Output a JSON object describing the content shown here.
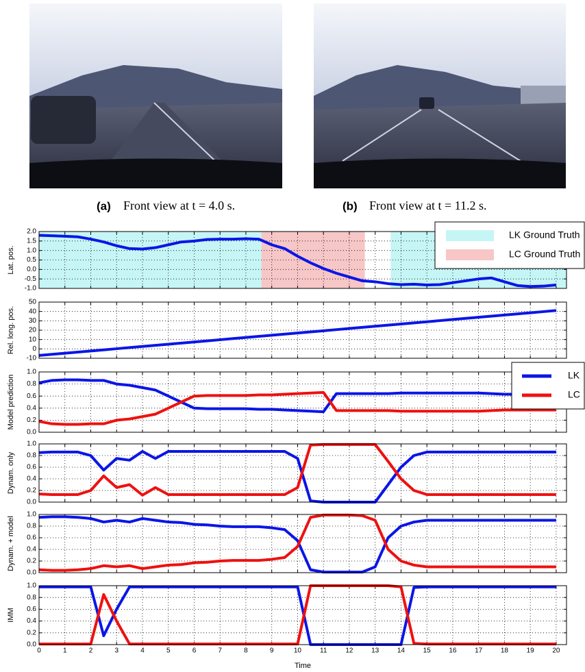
{
  "figure": {
    "captions": [
      {
        "label": "(a)",
        "text": "Front view at t = 4.0 s."
      },
      {
        "label": "(b)",
        "text": "Front view at t = 11.2 s."
      }
    ]
  },
  "chart_data": [
    {
      "type": "line",
      "ylabel": "Lat. pos.",
      "grid": true,
      "legend": "upper right",
      "xlim": [
        0,
        20.4
      ],
      "xticks": [
        0,
        1,
        2,
        3,
        4,
        5,
        6,
        7,
        8,
        9,
        10,
        11,
        12,
        13,
        14,
        15,
        16,
        17,
        18,
        19,
        20
      ],
      "ylim": [
        -1,
        2
      ],
      "yticks": [
        {
          "value": -1,
          "label": "-1.0"
        },
        {
          "value": -0.5,
          "label": "-0.5"
        },
        {
          "value": 0,
          "label": "0.0"
        },
        {
          "value": 0.5,
          "label": "0.5"
        },
        {
          "value": 1,
          "label": "1.0"
        },
        {
          "value": 1.5,
          "label": "1.5"
        },
        {
          "value": 2,
          "label": "2.0"
        }
      ],
      "spans": [
        {
          "name": "LK Ground Truth",
          "color": "#c6f5f5",
          "ranges": [
            [
              0,
              8.6
            ],
            [
              13.6,
              20.4
            ]
          ]
        },
        {
          "name": "LC Ground Truth",
          "color": "#f7c6c6",
          "ranges": [
            [
              8.6,
              12.6
            ]
          ]
        }
      ],
      "x": [
        0,
        0.5,
        1,
        1.5,
        2,
        2.5,
        3,
        3.5,
        4,
        4.5,
        5,
        5.5,
        6,
        6.5,
        7,
        7.5,
        8,
        8.5,
        9,
        9.5,
        10,
        10.5,
        11,
        11.5,
        12,
        12.5,
        13,
        13.5,
        14,
        14.5,
        15,
        15.5,
        16,
        16.5,
        17,
        17.5,
        18,
        18.5,
        19,
        19.5,
        20
      ],
      "series": [
        {
          "color": "#0b16e6",
          "values": [
            1.8,
            1.78,
            1.75,
            1.72,
            1.6,
            1.45,
            1.25,
            1.1,
            1.08,
            1.15,
            1.3,
            1.45,
            1.5,
            1.58,
            1.6,
            1.6,
            1.62,
            1.6,
            1.3,
            1.1,
            0.7,
            0.35,
            0.05,
            -0.2,
            -0.4,
            -0.6,
            -0.65,
            -0.75,
            -0.8,
            -0.78,
            -0.82,
            -0.8,
            -0.7,
            -0.6,
            -0.5,
            -0.45,
            -0.65,
            -0.85,
            -0.9,
            -0.88,
            -0.82
          ]
        }
      ]
    },
    {
      "type": "line",
      "ylabel": "Rel. long. pos.",
      "grid": true,
      "xlim": [
        0,
        20.4
      ],
      "xticks": [
        0,
        1,
        2,
        3,
        4,
        5,
        6,
        7,
        8,
        9,
        10,
        11,
        12,
        13,
        14,
        15,
        16,
        17,
        18,
        19,
        20
      ],
      "ylim": [
        -10,
        50
      ],
      "yticks": [
        -10,
        0,
        10,
        20,
        30,
        40,
        50
      ],
      "x": [
        0,
        0.5,
        1,
        1.5,
        2,
        2.5,
        3,
        3.5,
        4,
        4.5,
        5,
        5.5,
        6,
        6.5,
        7,
        7.5,
        8,
        8.5,
        9,
        9.5,
        10,
        10.5,
        11,
        11.5,
        12,
        12.5,
        13,
        13.5,
        14,
        14.5,
        15,
        15.5,
        16,
        16.5,
        17,
        17.5,
        18,
        18.5,
        19,
        19.5,
        20
      ],
      "series": [
        {
          "color": "#0b16e6",
          "values": [
            -7,
            -5.8,
            -4.6,
            -3.4,
            -2.2,
            -1,
            0.2,
            1.4,
            2.6,
            3.8,
            5,
            6.2,
            7.4,
            8.6,
            9.8,
            11,
            12.2,
            13.4,
            14.6,
            15.8,
            17,
            18.2,
            19.4,
            20.6,
            21.8,
            23,
            24.2,
            25.4,
            26.6,
            27.8,
            29,
            30.2,
            31.4,
            32.6,
            33.8,
            35,
            36.2,
            37.4,
            38.6,
            39.8,
            41
          ]
        }
      ]
    },
    {
      "type": "line",
      "ylabel": "Model prediction",
      "grid": true,
      "legend": "upper right",
      "xlim": [
        0,
        20.4
      ],
      "xticks": [
        0,
        1,
        2,
        3,
        4,
        5,
        6,
        7,
        8,
        9,
        10,
        11,
        12,
        13,
        14,
        15,
        16,
        17,
        18,
        19,
        20
      ],
      "ylim": [
        0,
        1
      ],
      "yticks": [
        {
          "value": 0,
          "label": "0.0"
        },
        {
          "value": 0.2,
          "label": "0.2"
        },
        {
          "value": 0.4,
          "label": "0.4"
        },
        {
          "value": 0.6,
          "label": "0.6"
        },
        {
          "value": 0.8,
          "label": "0.8"
        },
        {
          "value": 1,
          "label": "1.0"
        }
      ],
      "x": [
        0,
        0.5,
        1,
        1.5,
        2,
        2.5,
        3,
        3.5,
        4,
        4.5,
        5,
        5.5,
        6,
        6.5,
        7,
        7.5,
        8,
        8.5,
        9,
        9.5,
        10,
        10.5,
        11,
        11.5,
        12,
        12.5,
        13,
        13.5,
        14,
        14.5,
        15,
        15.5,
        16,
        16.5,
        17,
        17.5,
        18,
        18.5,
        19,
        19.5,
        20
      ],
      "series": [
        {
          "name": "LK",
          "color": "#0b16e6",
          "values": [
            0.82,
            0.86,
            0.87,
            0.87,
            0.86,
            0.86,
            0.8,
            0.78,
            0.74,
            0.7,
            0.6,
            0.5,
            0.4,
            0.39,
            0.39,
            0.39,
            0.39,
            0.38,
            0.38,
            0.37,
            0.36,
            0.35,
            0.34,
            0.64,
            0.64,
            0.64,
            0.64,
            0.64,
            0.65,
            0.65,
            0.65,
            0.65,
            0.65,
            0.65,
            0.65,
            0.64,
            0.63,
            0.63,
            0.63,
            0.63,
            0.63
          ]
        },
        {
          "name": "LC",
          "color": "#ee1111",
          "values": [
            0.18,
            0.14,
            0.13,
            0.13,
            0.14,
            0.14,
            0.2,
            0.22,
            0.26,
            0.3,
            0.4,
            0.5,
            0.6,
            0.61,
            0.61,
            0.61,
            0.61,
            0.62,
            0.62,
            0.63,
            0.64,
            0.65,
            0.66,
            0.36,
            0.36,
            0.36,
            0.36,
            0.36,
            0.35,
            0.35,
            0.35,
            0.35,
            0.35,
            0.35,
            0.35,
            0.36,
            0.37,
            0.37,
            0.37,
            0.37,
            0.37
          ]
        }
      ]
    },
    {
      "type": "line",
      "ylabel": "Dynam. only",
      "grid": true,
      "xlim": [
        0,
        20.4
      ],
      "xticks": [
        0,
        1,
        2,
        3,
        4,
        5,
        6,
        7,
        8,
        9,
        10,
        11,
        12,
        13,
        14,
        15,
        16,
        17,
        18,
        19,
        20
      ],
      "ylim": [
        0,
        1
      ],
      "yticks": [
        {
          "value": 0,
          "label": "0.0"
        },
        {
          "value": 0.2,
          "label": "0.2"
        },
        {
          "value": 0.4,
          "label": "0.4"
        },
        {
          "value": 0.6,
          "label": "0.6"
        },
        {
          "value": 0.8,
          "label": "0.8"
        },
        {
          "value": 1,
          "label": "1.0"
        }
      ],
      "x": [
        0,
        0.5,
        1,
        1.5,
        2,
        2.5,
        3,
        3.5,
        4,
        4.5,
        5,
        5.5,
        6,
        6.5,
        7,
        7.5,
        8,
        8.5,
        9,
        9.5,
        10,
        10.5,
        11,
        11.5,
        12,
        12.5,
        13,
        13.5,
        14,
        14.5,
        15,
        15.5,
        16,
        16.5,
        17,
        17.5,
        18,
        18.5,
        19,
        19.5,
        20
      ],
      "series": [
        {
          "name": "LK",
          "color": "#0b16e6",
          "values": [
            0.85,
            0.86,
            0.86,
            0.86,
            0.8,
            0.55,
            0.75,
            0.72,
            0.87,
            0.75,
            0.87,
            0.87,
            0.87,
            0.87,
            0.87,
            0.87,
            0.87,
            0.87,
            0.87,
            0.87,
            0.75,
            0.02,
            0,
            0,
            0,
            0,
            0,
            0.3,
            0.6,
            0.8,
            0.86,
            0.86,
            0.86,
            0.86,
            0.86,
            0.86,
            0.86,
            0.86,
            0.86,
            0.86,
            0.86
          ]
        },
        {
          "name": "LC",
          "color": "#ee1111",
          "values": [
            0.14,
            0.13,
            0.13,
            0.13,
            0.2,
            0.45,
            0.25,
            0.3,
            0.12,
            0.25,
            0.13,
            0.13,
            0.13,
            0.13,
            0.13,
            0.13,
            0.13,
            0.13,
            0.13,
            0.13,
            0.25,
            0.98,
            0.99,
            0.99,
            0.99,
            0.99,
            0.99,
            0.7,
            0.4,
            0.2,
            0.13,
            0.13,
            0.13,
            0.13,
            0.13,
            0.13,
            0.13,
            0.13,
            0.13,
            0.13,
            0.13
          ]
        }
      ]
    },
    {
      "type": "line",
      "ylabel": "Dynam. + model",
      "grid": true,
      "xlim": [
        0,
        20.4
      ],
      "xticks": [
        0,
        1,
        2,
        3,
        4,
        5,
        6,
        7,
        8,
        9,
        10,
        11,
        12,
        13,
        14,
        15,
        16,
        17,
        18,
        19,
        20
      ],
      "ylim": [
        0,
        1
      ],
      "yticks": [
        {
          "value": 0,
          "label": "0.0"
        },
        {
          "value": 0.2,
          "label": "0.2"
        },
        {
          "value": 0.4,
          "label": "0.4"
        },
        {
          "value": 0.6,
          "label": "0.6"
        },
        {
          "value": 0.8,
          "label": "0.8"
        },
        {
          "value": 1,
          "label": "1.0"
        }
      ],
      "x": [
        0,
        0.5,
        1,
        1.5,
        2,
        2.5,
        3,
        3.5,
        4,
        4.5,
        5,
        5.5,
        6,
        6.5,
        7,
        7.5,
        8,
        8.5,
        9,
        9.5,
        10,
        10.5,
        11,
        11.5,
        12,
        12.5,
        13,
        13.5,
        14,
        14.5,
        15,
        15.5,
        16,
        16.5,
        17,
        17.5,
        18,
        18.5,
        19,
        19.5,
        20
      ],
      "series": [
        {
          "name": "LK",
          "color": "#0b16e6",
          "values": [
            0.95,
            0.96,
            0.96,
            0.95,
            0.93,
            0.87,
            0.9,
            0.87,
            0.93,
            0.9,
            0.87,
            0.86,
            0.83,
            0.82,
            0.8,
            0.79,
            0.79,
            0.79,
            0.77,
            0.74,
            0.55,
            0.05,
            0.01,
            0.01,
            0.01,
            0.01,
            0.1,
            0.6,
            0.8,
            0.87,
            0.9,
            0.9,
            0.9,
            0.9,
            0.9,
            0.9,
            0.9,
            0.9,
            0.9,
            0.9,
            0.9
          ]
        },
        {
          "name": "LC",
          "color": "#ee1111",
          "values": [
            0.05,
            0.04,
            0.04,
            0.05,
            0.07,
            0.12,
            0.1,
            0.12,
            0.07,
            0.1,
            0.13,
            0.14,
            0.17,
            0.18,
            0.2,
            0.21,
            0.21,
            0.21,
            0.23,
            0.26,
            0.45,
            0.95,
            0.99,
            0.99,
            0.99,
            0.98,
            0.9,
            0.4,
            0.2,
            0.13,
            0.1,
            0.1,
            0.1,
            0.1,
            0.1,
            0.1,
            0.1,
            0.1,
            0.1,
            0.1,
            0.1
          ]
        }
      ]
    },
    {
      "type": "line",
      "ylabel": "IMM",
      "xlabel": "Time",
      "grid": true,
      "xlim": [
        0,
        20.4
      ],
      "xticks": [
        0,
        1,
        2,
        3,
        4,
        5,
        6,
        7,
        8,
        9,
        10,
        11,
        12,
        13,
        14,
        15,
        16,
        17,
        18,
        19,
        20
      ],
      "ylim": [
        0,
        1
      ],
      "yticks": [
        {
          "value": 0,
          "label": "0.0"
        },
        {
          "value": 0.2,
          "label": "0.2"
        },
        {
          "value": 0.4,
          "label": "0.4"
        },
        {
          "value": 0.6,
          "label": "0.6"
        },
        {
          "value": 0.8,
          "label": "0.8"
        },
        {
          "value": 1,
          "label": "1.0"
        }
      ],
      "x": [
        0,
        0.5,
        1,
        1.5,
        2,
        2.5,
        3,
        3.5,
        4,
        4.5,
        5,
        5.5,
        6,
        6.5,
        7,
        7.5,
        8,
        8.5,
        9,
        9.5,
        10,
        10.5,
        11,
        11.5,
        12,
        12.5,
        13,
        13.5,
        14,
        14.5,
        15,
        15.5,
        16,
        16.5,
        17,
        17.5,
        18,
        18.5,
        19,
        19.5,
        20
      ],
      "series": [
        {
          "name": "LK",
          "color": "#0b16e6",
          "values": [
            0.98,
            0.98,
            0.98,
            0.98,
            0.98,
            0.15,
            0.6,
            0.98,
            0.98,
            0.98,
            0.98,
            0.98,
            0.98,
            0.98,
            0.98,
            0.98,
            0.98,
            0.98,
            0.98,
            0.98,
            0.98,
            0,
            0,
            0,
            0,
            0,
            0,
            0,
            0,
            0.97,
            0.98,
            0.98,
            0.98,
            0.98,
            0.98,
            0.98,
            0.98,
            0.98,
            0.98,
            0.98,
            0.98
          ]
        },
        {
          "name": "LC",
          "color": "#ee1111",
          "values": [
            0.01,
            0.01,
            0.01,
            0.01,
            0.01,
            0.85,
            0.4,
            0.01,
            0.01,
            0.01,
            0.01,
            0.01,
            0.01,
            0.01,
            0.01,
            0.01,
            0.01,
            0.01,
            0.01,
            0.01,
            0.01,
            1,
            1,
            1,
            1,
            1,
            1,
            1,
            0.98,
            0.02,
            0.01,
            0.01,
            0.01,
            0.01,
            0.01,
            0.01,
            0.01,
            0.01,
            0.01,
            0.01,
            0.01
          ]
        }
      ]
    }
  ]
}
